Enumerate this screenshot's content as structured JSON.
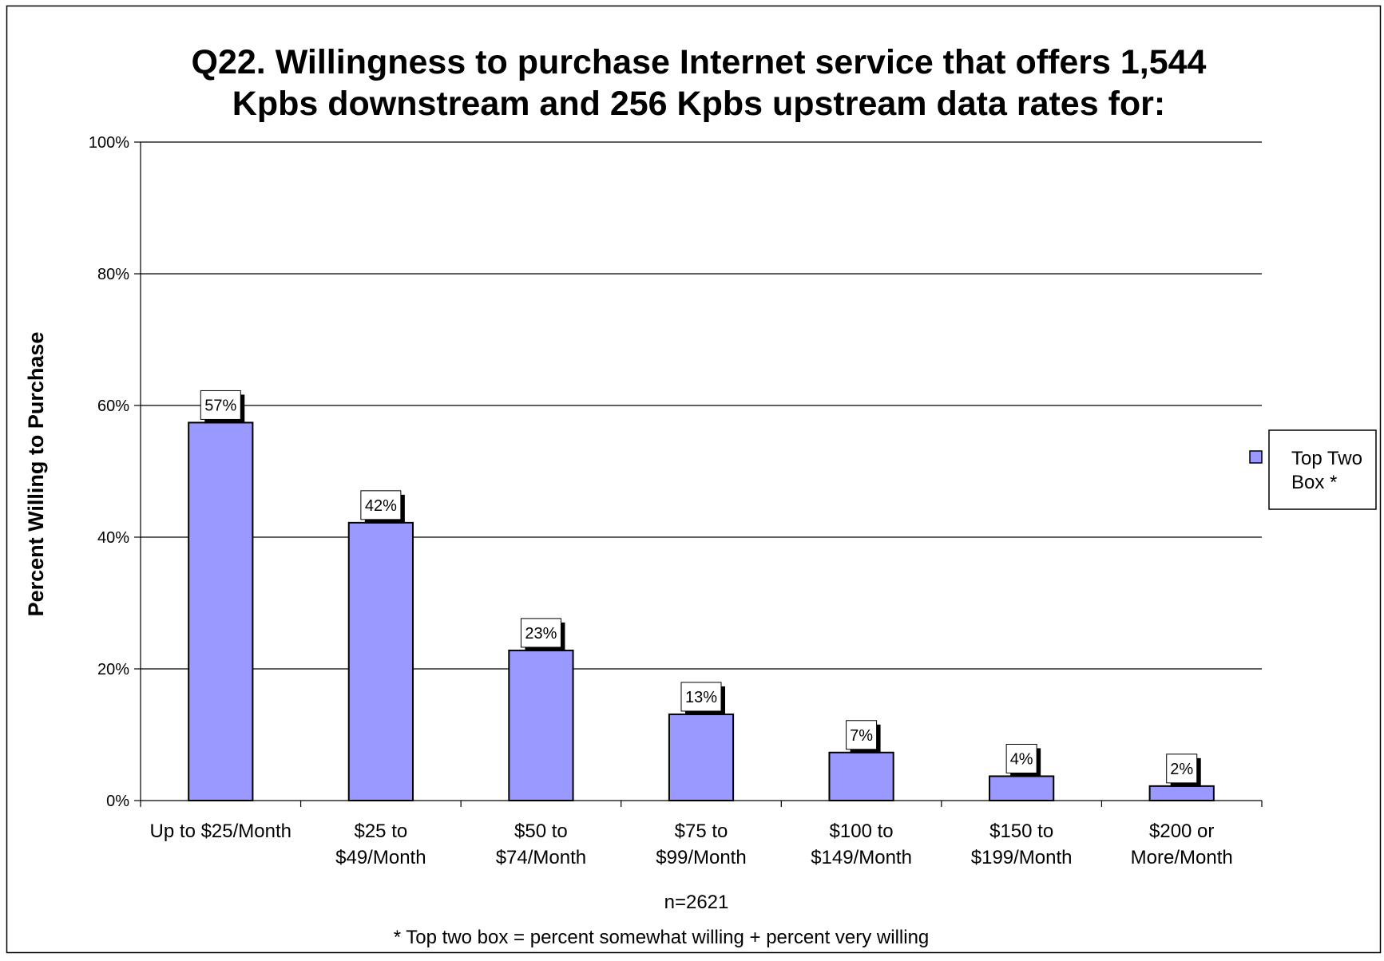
{
  "chart_data": {
    "type": "bar",
    "title_line1": "Q22. Willingness to purchase Internet service that offers 1,544",
    "title_line2": "Kpbs downstream and 256 Kpbs upstream data rates for:",
    "ylabel": "Percent Willing to Purchase",
    "ylim": [
      0,
      100
    ],
    "yticks": [
      "0%",
      "20%",
      "40%",
      "60%",
      "80%",
      "100%"
    ],
    "ytick_values": [
      0,
      20,
      40,
      60,
      80,
      100
    ],
    "grid": true,
    "categories": [
      [
        "Up to $25/Month",
        ""
      ],
      [
        "$25 to",
        "$49/Month"
      ],
      [
        "$50 to",
        "$74/Month"
      ],
      [
        "$75 to",
        "$99/Month"
      ],
      [
        "$100 to",
        "$149/Month"
      ],
      [
        "$150 to",
        "$199/Month"
      ],
      [
        "$200 or",
        "More/Month"
      ]
    ],
    "series": [
      {
        "name": "Top Two Box *",
        "values": [
          57.4,
          42.2,
          22.8,
          13.1,
          7.3,
          3.7,
          2.2
        ],
        "data_labels": [
          "57%",
          "42%",
          "23%",
          "13%",
          "7%",
          "4%",
          "2%"
        ],
        "color": "#9999ff"
      }
    ],
    "legend": {
      "position": "right",
      "line1": "Top Two",
      "line2": "Box *"
    },
    "note_n": "n=2621",
    "footnote": "* Top two box = percent somewhat willing + percent very willing"
  }
}
